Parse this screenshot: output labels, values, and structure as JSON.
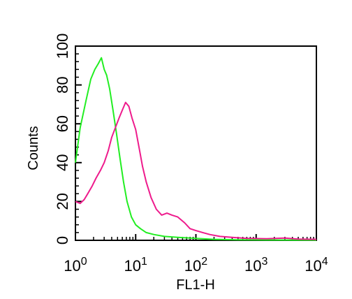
{
  "chart_data": {
    "type": "line",
    "title": "",
    "xlabel": "FL1-H",
    "ylabel": "Counts",
    "x_scale": "log",
    "xlim": [
      1,
      10000
    ],
    "ylim": [
      0,
      100
    ],
    "x_ticks": [
      {
        "value": 1,
        "base": "10",
        "exp": "0"
      },
      {
        "value": 10,
        "base": "10",
        "exp": "1"
      },
      {
        "value": 100,
        "base": "10",
        "exp": "2"
      },
      {
        "value": 1000,
        "base": "10",
        "exp": "3"
      },
      {
        "value": 10000,
        "base": "10",
        "exp": "4"
      }
    ],
    "y_ticks": [
      "0",
      "20",
      "40",
      "60",
      "80",
      "100"
    ],
    "grid": false,
    "series": [
      {
        "color": "#22ee22",
        "points": [
          [
            1.0,
            40
          ],
          [
            1.2,
            58
          ],
          [
            1.5,
            72
          ],
          [
            1.8,
            83
          ],
          [
            2.1,
            88
          ],
          [
            2.4,
            91
          ],
          [
            2.7,
            94
          ],
          [
            3.0,
            88
          ],
          [
            3.3,
            85
          ],
          [
            3.7,
            78
          ],
          [
            4.2,
            67
          ],
          [
            4.8,
            55
          ],
          [
            5.5,
            42
          ],
          [
            6.3,
            30
          ],
          [
            7.2,
            20
          ],
          [
            8.5,
            12
          ],
          [
            10,
            8
          ],
          [
            12,
            6
          ],
          [
            15,
            4
          ],
          [
            20,
            3
          ],
          [
            30,
            2
          ],
          [
            50,
            1.5
          ],
          [
            100,
            1
          ],
          [
            200,
            0.5
          ],
          [
            500,
            0.3
          ],
          [
            1000,
            0.2
          ],
          [
            10000,
            0.1
          ]
        ]
      },
      {
        "color": "#ee1b8c",
        "points": [
          [
            1.0,
            20
          ],
          [
            1.2,
            19
          ],
          [
            1.4,
            21
          ],
          [
            1.6,
            24
          ],
          [
            1.9,
            28
          ],
          [
            2.2,
            32
          ],
          [
            2.6,
            36
          ],
          [
            3.0,
            40
          ],
          [
            3.5,
            46
          ],
          [
            4.0,
            53
          ],
          [
            4.6,
            58
          ],
          [
            5.3,
            63
          ],
          [
            6.0,
            67
          ],
          [
            6.8,
            71
          ],
          [
            7.7,
            69
          ],
          [
            8.7,
            63
          ],
          [
            10,
            57
          ],
          [
            11.5,
            47
          ],
          [
            13,
            38
          ],
          [
            15,
            30
          ],
          [
            18,
            22
          ],
          [
            22,
            16
          ],
          [
            27,
            13
          ],
          [
            33,
            14
          ],
          [
            40,
            13
          ],
          [
            50,
            12
          ],
          [
            65,
            9
          ],
          [
            80,
            6
          ],
          [
            100,
            5
          ],
          [
            130,
            4
          ],
          [
            170,
            3
          ],
          [
            250,
            2
          ],
          [
            400,
            1.5
          ],
          [
            700,
            1
          ],
          [
            1500,
            0.8
          ],
          [
            3000,
            1.2
          ],
          [
            5000,
            0.6
          ],
          [
            10000,
            0.5
          ]
        ]
      }
    ]
  }
}
